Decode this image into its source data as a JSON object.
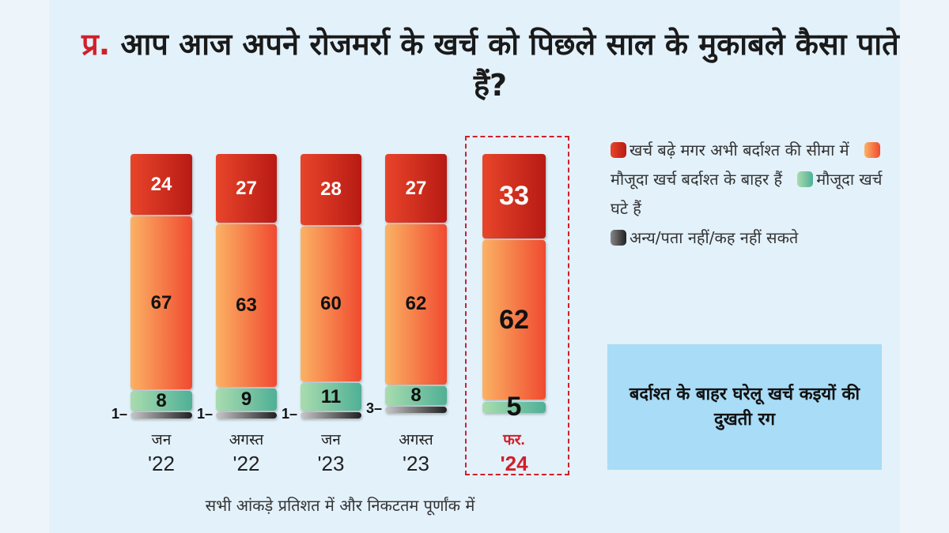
{
  "title": {
    "prefix": "प्र.",
    "text": "आप आज अपने रोजमर्रा के खर्च को पिछले साल के मुकाबले कैसा पाते हैं?"
  },
  "chart_data": {
    "type": "bar",
    "stacked": true,
    "categories": [
      {
        "month": "जन",
        "year": "'22"
      },
      {
        "month": "अगस्त",
        "year": "'22"
      },
      {
        "month": "जन",
        "year": "'23"
      },
      {
        "month": "अगस्त",
        "year": "'23"
      },
      {
        "month": "फर.",
        "year": "'24"
      }
    ],
    "highlighted_category": 4,
    "series": [
      {
        "name": "खर्च बढ़े मगर अभी बर्दाश्त की सीमा में",
        "color": "#d3301e",
        "values": [
          24,
          27,
          28,
          27,
          33
        ]
      },
      {
        "name": "मौजूदा खर्च बर्दाश्त के बाहर हैं",
        "color": "#f7834a",
        "values": [
          67,
          63,
          60,
          62,
          62
        ]
      },
      {
        "name": "मौजूदा खर्च घटे हैं",
        "color": "#7cc6a2",
        "values": [
          8,
          9,
          11,
          8,
          5
        ]
      },
      {
        "name": "अन्य/पता नहीं/कह नहीं सकते",
        "color": "#555555",
        "values": [
          1,
          1,
          1,
          3,
          null
        ]
      }
    ],
    "unit": "%",
    "note": "सभी आंकड़े प्रतिशत में और निकटतम पूर्णांक में",
    "legend_position": "right"
  },
  "callout": "बर्दाश्त के बाहर घरेलू खर्च कइयों की दुखती रग"
}
